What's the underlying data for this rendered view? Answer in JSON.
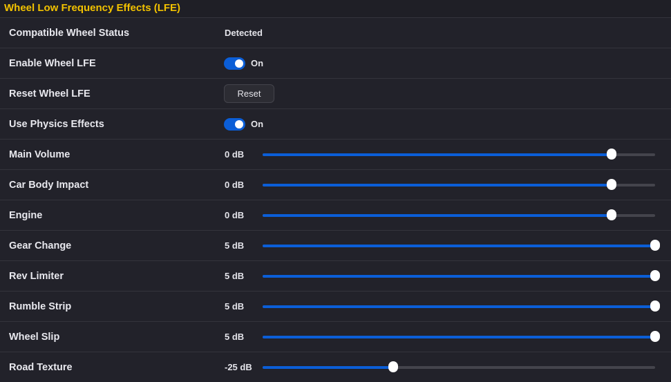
{
  "header": {
    "title": "Wheel Low Frequency Effects (LFE)"
  },
  "colors": {
    "accent": "#0b5ed7",
    "title": "#f2c200",
    "background": "#22222a"
  },
  "status_row": {
    "label": "Compatible Wheel Status",
    "value": "Detected"
  },
  "toggles": [
    {
      "label": "Enable Wheel LFE",
      "state": "On"
    },
    {
      "label": "Use Physics Effects",
      "state": "On"
    }
  ],
  "reset_row": {
    "label": "Reset Wheel LFE",
    "button": "Reset"
  },
  "sliders": [
    {
      "label": "Main Volume",
      "value": "0 dB",
      "fraction": 0.889
    },
    {
      "label": "Car Body Impact",
      "value": "0 dB",
      "fraction": 0.889
    },
    {
      "label": "Engine",
      "value": "0 dB",
      "fraction": 0.889
    },
    {
      "label": "Gear Change",
      "value": "5 dB",
      "fraction": 1.0
    },
    {
      "label": "Rev Limiter",
      "value": "5 dB",
      "fraction": 1.0
    },
    {
      "label": "Rumble Strip",
      "value": "5 dB",
      "fraction": 1.0
    },
    {
      "label": "Wheel Slip",
      "value": "5 dB",
      "fraction": 1.0
    },
    {
      "label": "Road Texture",
      "value": "-25 dB",
      "fraction": 0.333
    }
  ]
}
